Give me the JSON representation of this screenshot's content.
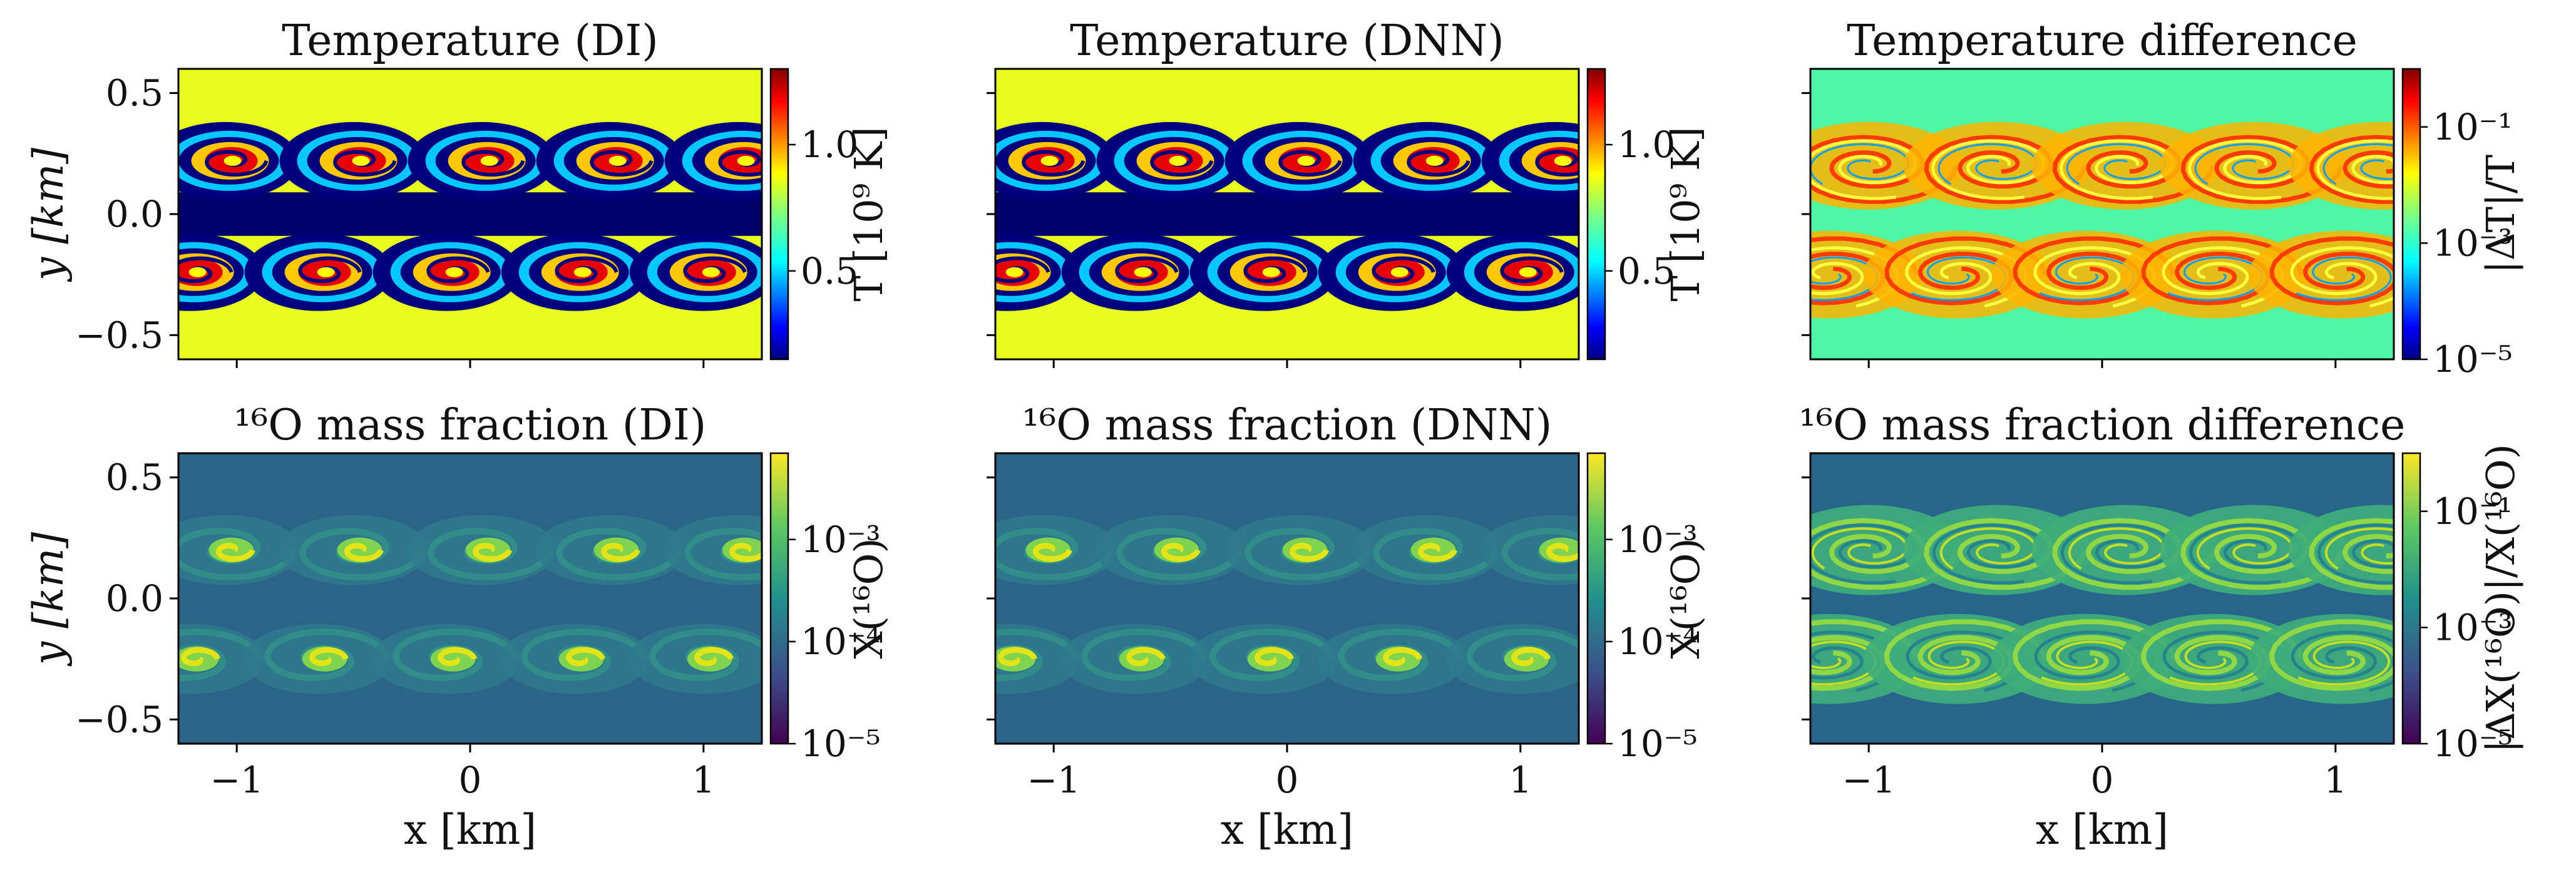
{
  "chart_data": [
    {
      "type": "heatmap",
      "title": "Temperature (DI)",
      "ylabel": "y [km]",
      "xlabel": "",
      "xlim": [
        -1.25,
        1.25
      ],
      "ylim": [
        -0.6,
        0.6
      ],
      "yticks": [
        "0.5",
        "0.0",
        "−0.5"
      ],
      "colorscale": "jet",
      "field": "temperature",
      "colorbar": {
        "label": "T [10⁹ K]",
        "ticks": [
          "1.0",
          "0.5"
        ],
        "range": [
          0.15,
          1.3
        ]
      }
    },
    {
      "type": "heatmap",
      "title": "Temperature (DNN)",
      "ylabel": "",
      "xlabel": "",
      "xlim": [
        -1.25,
        1.25
      ],
      "ylim": [
        -0.6,
        0.6
      ],
      "colorscale": "jet",
      "field": "temperature",
      "colorbar": {
        "label": "T [10⁹ K]",
        "ticks": [
          "1.0",
          "0.5"
        ],
        "range": [
          0.15,
          1.3
        ]
      }
    },
    {
      "type": "heatmap",
      "title": "Temperature difference",
      "ylabel": "",
      "xlabel": "",
      "xlim": [
        -1.25,
        1.25
      ],
      "ylim": [
        -0.6,
        0.6
      ],
      "colorscale": "jet",
      "scale": "log",
      "field": "temperature-difference",
      "colorbar": {
        "label": "|ΔT|/T",
        "ticks": [
          "10⁻¹",
          "10⁻³",
          "10⁻⁵"
        ],
        "range": [
          1e-05,
          1
        ]
      }
    },
    {
      "type": "heatmap",
      "title": "¹⁶O mass fraction (DI)",
      "ylabel": "y [km]",
      "xlabel": "x [km]",
      "xlim": [
        -1.25,
        1.25
      ],
      "ylim": [
        -0.6,
        0.6
      ],
      "xticks": [
        "−1",
        "0",
        "1"
      ],
      "yticks": [
        "0.5",
        "0.0",
        "−0.5"
      ],
      "colorscale": "viridis",
      "scale": "log",
      "field": "o16",
      "colorbar": {
        "label": "X(¹⁶O)",
        "ticks": [
          "10⁻³",
          "10⁻⁴",
          "10⁻⁵"
        ],
        "range": [
          1e-05,
          0.007
        ]
      }
    },
    {
      "type": "heatmap",
      "title": "¹⁶O mass fraction (DNN)",
      "ylabel": "",
      "xlabel": "x [km]",
      "xlim": [
        -1.25,
        1.25
      ],
      "ylim": [
        -0.6,
        0.6
      ],
      "xticks": [
        "−1",
        "0",
        "1"
      ],
      "colorscale": "viridis",
      "scale": "log",
      "field": "o16",
      "colorbar": {
        "label": "X(¹⁶O)",
        "ticks": [
          "10⁻³",
          "10⁻⁴",
          "10⁻⁵"
        ],
        "range": [
          1e-05,
          0.007
        ]
      }
    },
    {
      "type": "heatmap",
      "title": "¹⁶O mass fraction difference",
      "ylabel": "",
      "xlabel": "x [km]",
      "xlim": [
        -1.25,
        1.25
      ],
      "ylim": [
        -0.6,
        0.6
      ],
      "xticks": [
        "−1",
        "0",
        "1"
      ],
      "colorscale": "viridis",
      "scale": "log",
      "field": "o16-difference",
      "colorbar": {
        "label": "|ΔX(¹⁶O)|/X(¹⁶O)",
        "ticks": [
          "10⁻¹",
          "10⁻³",
          "10⁻⁵"
        ],
        "range": [
          1e-05,
          1
        ]
      }
    }
  ],
  "colors": {
    "jet": [
      "#00007f",
      "#0000ff",
      "#007fff",
      "#00ffff",
      "#7fff7f",
      "#ffff00",
      "#ff7f00",
      "#ff0000",
      "#7f0000"
    ],
    "viridis": [
      "#440154",
      "#3b528b",
      "#21918c",
      "#5ec962",
      "#fde725"
    ],
    "temp-background": "#e8fb1c",
    "temp-band": "#00006a",
    "tdiff-background": "#4df6a2",
    "o16-background": "#2c6487",
    "o16-diff-background": "#27658a"
  }
}
